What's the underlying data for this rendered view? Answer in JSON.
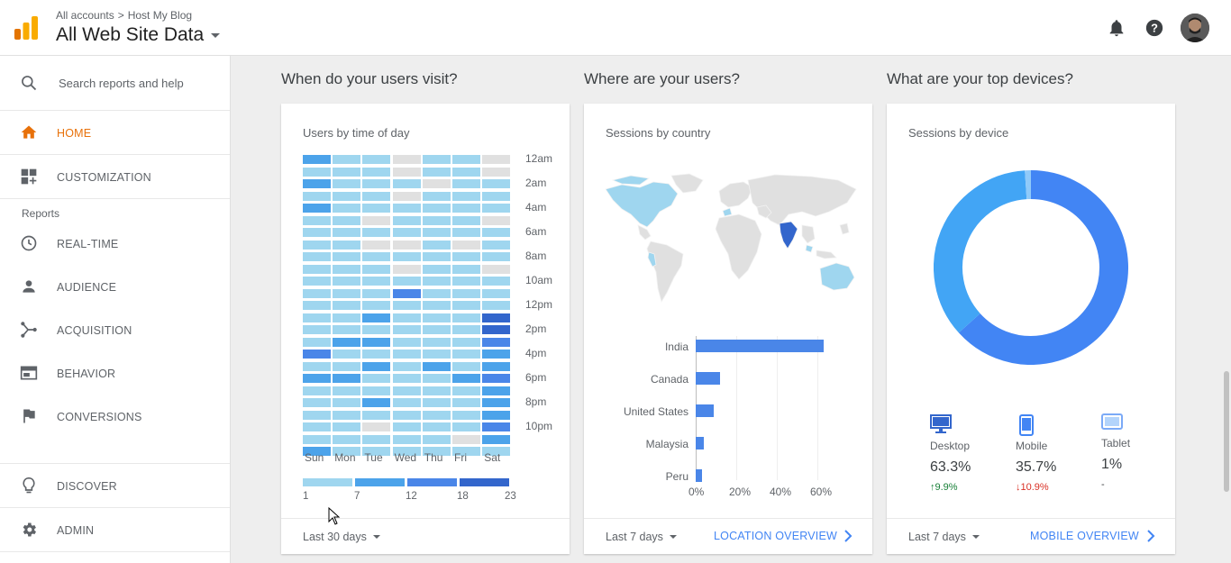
{
  "header": {
    "breadcrumb": [
      "All accounts",
      "Host My Blog"
    ],
    "breadcrumb_sep": ">",
    "title": "All Web Site Data"
  },
  "sidebar": {
    "search_placeholder": "Search reports and help",
    "top_items": [
      {
        "label": "HOME",
        "icon": "home-icon",
        "active": true
      },
      {
        "label": "CUSTOMIZATION",
        "icon": "dashboard-icon",
        "active": false
      }
    ],
    "section_label": "Reports",
    "report_items": [
      {
        "label": "REAL-TIME",
        "icon": "clock-icon"
      },
      {
        "label": "AUDIENCE",
        "icon": "person-icon"
      },
      {
        "label": "ACQUISITION",
        "icon": "acquisition-icon"
      },
      {
        "label": "BEHAVIOR",
        "icon": "behavior-icon"
      },
      {
        "label": "CONVERSIONS",
        "icon": "flag-icon"
      }
    ],
    "bottom_items": [
      {
        "label": "DISCOVER",
        "icon": "lightbulb-icon"
      },
      {
        "label": "ADMIN",
        "icon": "gear-icon"
      }
    ]
  },
  "cards": {
    "time": {
      "question": "When do your users visit?",
      "subtitle": "Users by time of day",
      "days": [
        "Sun",
        "Mon",
        "Tue",
        "Wed",
        "Thu",
        "Fri",
        "Sat"
      ],
      "hour_labels": [
        "12am",
        "2am",
        "4am",
        "6am",
        "8am",
        "10am",
        "12pm",
        "2pm",
        "4pm",
        "6pm",
        "8pm",
        "10pm"
      ],
      "legend": [
        "1",
        "7",
        "12",
        "18",
        "23"
      ],
      "range": "Last 30 days"
    },
    "location": {
      "question": "Where are your users?",
      "subtitle": "Sessions by country",
      "range": "Last 7 days",
      "link": "LOCATION OVERVIEW"
    },
    "devices": {
      "question": "What are your top devices?",
      "subtitle": "Sessions by device",
      "range": "Last 7 days",
      "link": "MOBILE OVERVIEW",
      "items": [
        {
          "name": "Desktop",
          "pct": "63.3%",
          "change": "9.9%",
          "dir": "up",
          "icon": "desktop-icon"
        },
        {
          "name": "Mobile",
          "pct": "35.7%",
          "change": "10.9%",
          "dir": "down",
          "icon": "mobile-icon"
        },
        {
          "name": "Tablet",
          "pct": "1%",
          "change": "-",
          "dir": "none",
          "icon": "tablet-icon"
        }
      ]
    }
  },
  "colors": {
    "accent": "#e8710a",
    "link": "#4285f4",
    "heat_levels": [
      "#e0e0e0",
      "#9fd6ef",
      "#4ca3ea",
      "#4a86e8",
      "#3366cc"
    ],
    "donut_desktop": "#4285f4",
    "donut_mobile": "#42a5f5",
    "donut_tablet": "#90caf9"
  },
  "chart_data": [
    {
      "type": "heatmap",
      "title": "Users by time of day",
      "x": [
        "Sun",
        "Mon",
        "Tue",
        "Wed",
        "Thu",
        "Fri",
        "Sat"
      ],
      "y_ticks": [
        "12am",
        "2am",
        "4am",
        "6am",
        "8am",
        "10am",
        "12pm",
        "2pm",
        "4pm",
        "6pm",
        "8pm",
        "10pm"
      ],
      "legend_scale": [
        1,
        7,
        12,
        18,
        23
      ],
      "levels": [
        [
          2,
          1,
          1,
          0,
          1,
          1,
          0
        ],
        [
          1,
          1,
          1,
          0,
          1,
          1,
          0
        ],
        [
          2,
          1,
          1,
          1,
          0,
          1,
          1
        ],
        [
          1,
          1,
          1,
          0,
          1,
          1,
          1
        ],
        [
          2,
          1,
          1,
          1,
          1,
          1,
          1
        ],
        [
          1,
          1,
          0,
          1,
          1,
          1,
          0
        ],
        [
          1,
          1,
          1,
          1,
          1,
          1,
          1
        ],
        [
          1,
          1,
          0,
          0,
          1,
          0,
          1
        ],
        [
          1,
          1,
          1,
          1,
          1,
          1,
          1
        ],
        [
          1,
          1,
          1,
          0,
          1,
          1,
          0
        ],
        [
          1,
          1,
          1,
          1,
          1,
          1,
          1
        ],
        [
          1,
          1,
          1,
          3,
          1,
          1,
          1
        ],
        [
          1,
          1,
          1,
          1,
          1,
          1,
          1
        ],
        [
          1,
          1,
          2,
          1,
          1,
          1,
          4
        ],
        [
          1,
          1,
          1,
          1,
          1,
          1,
          4
        ],
        [
          1,
          2,
          2,
          1,
          1,
          1,
          3
        ],
        [
          3,
          1,
          1,
          1,
          1,
          1,
          2
        ],
        [
          1,
          1,
          2,
          1,
          2,
          1,
          2
        ],
        [
          2,
          2,
          1,
          1,
          1,
          2,
          3
        ],
        [
          1,
          1,
          1,
          1,
          1,
          1,
          2
        ],
        [
          1,
          1,
          2,
          1,
          1,
          1,
          2
        ],
        [
          1,
          1,
          1,
          1,
          1,
          1,
          2
        ],
        [
          1,
          1,
          0,
          1,
          1,
          1,
          3
        ],
        [
          1,
          1,
          1,
          1,
          1,
          0,
          2
        ],
        [
          2,
          1,
          1,
          1,
          1,
          1,
          1
        ]
      ]
    },
    {
      "type": "bar",
      "title": "Sessions by country",
      "orientation": "horizontal",
      "categories": [
        "India",
        "Canada",
        "United States",
        "Malaysia",
        "Peru"
      ],
      "values": [
        63,
        12,
        9,
        4,
        3
      ],
      "x_ticks": [
        "0%",
        "20%",
        "40%",
        "60%"
      ],
      "xlim": [
        0,
        70
      ]
    },
    {
      "type": "pie",
      "title": "Sessions by device",
      "donut": true,
      "categories": [
        "Desktop",
        "Mobile",
        "Tablet"
      ],
      "values": [
        63.3,
        35.7,
        1
      ]
    }
  ]
}
